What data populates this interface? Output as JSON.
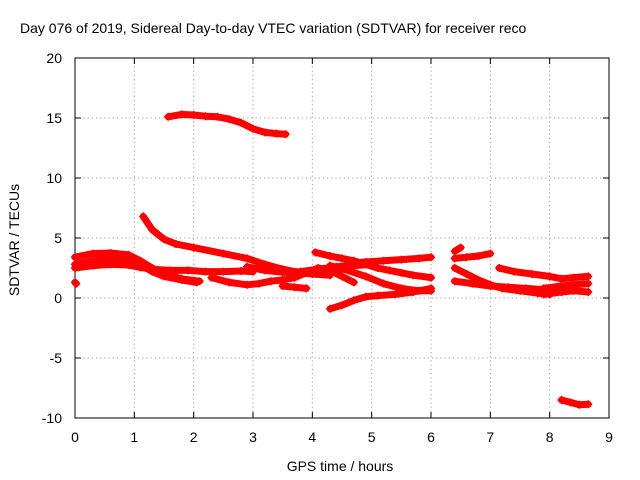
{
  "chart_data": {
    "type": "scatter",
    "title": "Day 076 of 2019, Sidereal Day-to-day VTEC variation (SDTVAR) for receiver reco",
    "xlabel": "GPS time / hours",
    "ylabel": "SDTVAR / TECUs",
    "xlim": [
      0,
      9
    ],
    "ylim": [
      -10,
      20
    ],
    "xticks": [
      "0",
      "1",
      "2",
      "3",
      "4",
      "5",
      "6",
      "7",
      "8",
      "9"
    ],
    "yticks": [
      "-10",
      "-5",
      "0",
      "5",
      "10",
      "15",
      "20"
    ],
    "grid": true,
    "marker": "+",
    "color": "#ff0000",
    "series": [
      {
        "name": "s1",
        "x": [
          1.57,
          1.8,
          2.0,
          2.2,
          2.4,
          2.6,
          2.8,
          3.0,
          3.2,
          3.4,
          3.55
        ],
        "y": [
          15.1,
          15.3,
          15.25,
          15.15,
          15.1,
          14.9,
          14.6,
          14.1,
          13.8,
          13.7,
          13.65
        ]
      },
      {
        "name": "s2",
        "x": [
          1.15,
          1.3,
          1.5,
          1.7,
          2.0,
          2.5,
          2.9,
          3.2,
          3.5,
          3.8,
          4.0,
          4.3
        ],
        "y": [
          6.8,
          5.7,
          4.9,
          4.5,
          4.2,
          3.7,
          3.3,
          2.8,
          2.4,
          2.1,
          2.0,
          1.9
        ]
      },
      {
        "name": "s3",
        "x": [
          0.0,
          0.02
        ],
        "y": [
          1.3,
          1.2
        ]
      },
      {
        "name": "s4",
        "x": [
          0.0,
          0.3,
          0.6,
          0.9,
          1.1,
          1.3,
          1.5,
          1.8,
          2.1
        ],
        "y": [
          3.4,
          3.7,
          3.75,
          3.6,
          3.1,
          2.5,
          2.0,
          1.6,
          1.4
        ]
      },
      {
        "name": "s5",
        "x": [
          0.0,
          0.3,
          0.6,
          0.9,
          1.1,
          1.3,
          1.6,
          1.9,
          2.2,
          2.5,
          2.8,
          3.0
        ],
        "y": [
          2.5,
          2.7,
          2.8,
          2.75,
          2.55,
          2.4,
          2.3,
          2.3,
          2.2,
          2.2,
          2.25,
          2.2
        ]
      },
      {
        "name": "s6",
        "x": [
          0.0,
          0.3,
          0.6,
          0.9,
          1.1,
          1.3,
          1.5,
          1.8,
          2.05
        ],
        "y": [
          2.8,
          3.1,
          3.3,
          3.2,
          2.8,
          2.2,
          1.8,
          1.5,
          1.3
        ]
      },
      {
        "name": "s7",
        "x": [
          2.3,
          2.6,
          2.9,
          3.1,
          3.3,
          3.5,
          3.7,
          3.9,
          4.1,
          4.3,
          4.5,
          4.7
        ],
        "y": [
          1.7,
          1.3,
          1.1,
          1.2,
          1.4,
          1.5,
          1.7,
          2.1,
          2.5,
          2.3,
          1.8,
          1.3
        ]
      },
      {
        "name": "s8",
        "x": [
          3.5,
          3.7,
          3.9
        ],
        "y": [
          1.0,
          0.9,
          0.8
        ]
      },
      {
        "name": "s9",
        "x": [
          2.9,
          3.2,
          3.5,
          3.8,
          4.1,
          4.4,
          4.7,
          5.0
        ],
        "y": [
          2.6,
          2.3,
          2.15,
          2.2,
          2.4,
          2.6,
          2.7,
          2.8
        ]
      },
      {
        "name": "s10",
        "x": [
          4.05,
          4.3,
          4.5,
          4.7,
          4.9,
          5.1,
          5.3,
          5.5,
          5.7,
          6.0
        ],
        "y": [
          3.8,
          3.5,
          3.3,
          3.1,
          2.8,
          2.5,
          2.3,
          2.1,
          1.9,
          1.7
        ]
      },
      {
        "name": "s11",
        "x": [
          4.6,
          4.9,
          5.2,
          5.5,
          5.8,
          6.0
        ],
        "y": [
          2.9,
          3.0,
          3.1,
          3.2,
          3.3,
          3.4
        ]
      },
      {
        "name": "s12",
        "x": [
          4.3,
          4.6,
          4.9,
          5.2,
          5.5,
          5.8,
          6.0
        ],
        "y": [
          2.7,
          2.3,
          1.8,
          1.2,
          0.8,
          0.6,
          0.6
        ]
      },
      {
        "name": "s13",
        "x": [
          4.3,
          4.5,
          4.7,
          4.9,
          5.1,
          5.4,
          5.7,
          6.0
        ],
        "y": [
          -0.9,
          -0.6,
          -0.2,
          0.1,
          0.2,
          0.3,
          0.5,
          0.8
        ]
      },
      {
        "name": "s14",
        "x": [
          6.4,
          6.5
        ],
        "y": [
          3.9,
          4.2
        ]
      },
      {
        "name": "s15",
        "x": [
          6.4,
          6.6,
          6.8,
          7.0
        ],
        "y": [
          3.3,
          3.4,
          3.5,
          3.7
        ]
      },
      {
        "name": "s16",
        "x": [
          6.4,
          6.6,
          6.8,
          7.0,
          7.2,
          7.5,
          7.8,
          8.0
        ],
        "y": [
          2.5,
          2.0,
          1.5,
          1.1,
          0.8,
          0.6,
          0.4,
          0.3
        ]
      },
      {
        "name": "s17",
        "x": [
          6.4,
          6.7,
          7.0,
          7.3,
          7.6,
          7.9
        ],
        "y": [
          1.4,
          1.2,
          1.0,
          0.9,
          0.8,
          0.7
        ]
      },
      {
        "name": "s18",
        "x": [
          7.15,
          7.4,
          7.7,
          8.0,
          8.2,
          8.4,
          8.65
        ],
        "y": [
          2.5,
          2.2,
          2.0,
          1.8,
          1.6,
          1.7,
          1.8
        ]
      },
      {
        "name": "s19",
        "x": [
          7.9,
          8.2,
          8.4,
          8.65
        ],
        "y": [
          0.8,
          1.0,
          1.1,
          1.2
        ]
      },
      {
        "name": "s20",
        "x": [
          7.9,
          8.2,
          8.4,
          8.65
        ],
        "y": [
          0.3,
          0.5,
          0.6,
          0.5
        ]
      },
      {
        "name": "s21",
        "x": [
          8.2,
          8.35,
          8.5,
          8.65
        ],
        "y": [
          -8.5,
          -8.7,
          -8.9,
          -8.85
        ]
      }
    ]
  }
}
